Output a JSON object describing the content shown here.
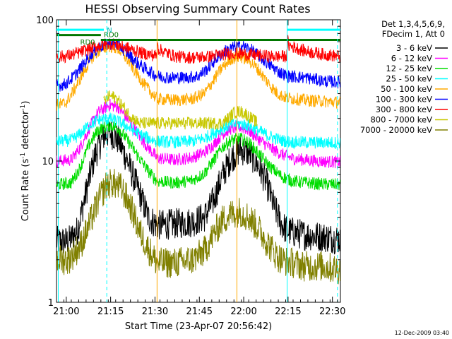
{
  "chart_data": {
    "type": "line",
    "title": "HESSI Observing Summary Count Rates",
    "xlabel": "Start Time (23-Apr-07 20:56:42)",
    "ylabel_main": "Count Rate (s",
    "ylabel_sup1": "-1",
    "ylabel_mid": " detector",
    "ylabel_sup2": "-1",
    "ylabel_end": ")",
    "yscale": "log",
    "xlim_minutes": [
      0,
      96
    ],
    "ylim": [
      1,
      100
    ],
    "x_ticks": [
      {
        "label": "21:00",
        "minute": 3.3
      },
      {
        "label": "21:15",
        "minute": 18.3
      },
      {
        "label": "21:30",
        "minute": 33.3
      },
      {
        "label": "21:45",
        "minute": 48.3
      },
      {
        "label": "22:00",
        "minute": 63.3
      },
      {
        "label": "22:15",
        "minute": 78.3
      },
      {
        "label": "22:30",
        "minute": 93.3
      }
    ],
    "y_ticks": [
      {
        "label": "1",
        "value": 1
      },
      {
        "label": "10",
        "value": 10
      },
      {
        "label": "100",
        "value": 100
      }
    ],
    "legend_header": [
      "Det 1,3,4,5,6,9,",
      "FDecim 1, Att 0"
    ],
    "legend_position": "right",
    "series": [
      {
        "name": "3 - 6 keV",
        "color": "#000000",
        "points": [
          [
            0,
            2.7
          ],
          [
            4,
            2.7
          ],
          [
            7,
            3.2
          ],
          [
            10,
            6
          ],
          [
            13,
            11
          ],
          [
            16,
            15
          ],
          [
            18,
            16
          ],
          [
            21,
            14
          ],
          [
            24,
            10
          ],
          [
            28,
            6
          ],
          [
            31,
            4
          ],
          [
            34,
            3.5
          ],
          [
            40,
            3.6
          ],
          [
            46,
            3.7
          ],
          [
            50,
            4
          ],
          [
            53,
            5.2
          ],
          [
            56,
            7.8
          ],
          [
            59,
            10.5
          ],
          [
            62,
            12
          ],
          [
            65,
            11.5
          ],
          [
            68,
            9.5
          ],
          [
            71,
            7
          ],
          [
            74,
            4.5
          ],
          [
            76,
            3.6
          ],
          [
            78,
            3.2
          ],
          [
            84,
            3.0
          ],
          [
            90,
            2.9
          ],
          [
            96,
            2.8
          ]
        ]
      },
      {
        "name": "6 - 12 keV",
        "color": "#ff00ff",
        "points": [
          [
            0,
            10
          ],
          [
            5,
            10.2
          ],
          [
            8,
            12.5
          ],
          [
            11,
            17
          ],
          [
            14,
            22
          ],
          [
            18,
            25
          ],
          [
            21,
            24
          ],
          [
            24,
            20
          ],
          [
            28,
            15
          ],
          [
            31,
            12.5
          ],
          [
            34,
            10.5
          ],
          [
            40,
            10.2
          ],
          [
            46,
            10.6
          ],
          [
            50,
            11.5
          ],
          [
            53,
            13
          ],
          [
            56,
            15.5
          ],
          [
            59,
            17
          ],
          [
            62,
            17.5
          ],
          [
            65,
            16.5
          ],
          [
            68,
            14.5
          ],
          [
            72,
            12.5
          ],
          [
            76,
            11.2
          ],
          [
            80,
            10.4
          ],
          [
            88,
            10
          ],
          [
            96,
            9.8
          ]
        ]
      },
      {
        "name": "12 - 25 keV",
        "color": "#00dd00",
        "points": [
          [
            0,
            6.8
          ],
          [
            5,
            7
          ],
          [
            8,
            9
          ],
          [
            11,
            13
          ],
          [
            14,
            16.5
          ],
          [
            18,
            18
          ],
          [
            21,
            17
          ],
          [
            24,
            14
          ],
          [
            28,
            10.5
          ],
          [
            31,
            8.5
          ],
          [
            34,
            7.2
          ],
          [
            40,
            7
          ],
          [
            46,
            7.3
          ],
          [
            50,
            8.2
          ],
          [
            53,
            10
          ],
          [
            56,
            12.5
          ],
          [
            59,
            14
          ],
          [
            62,
            14.5
          ],
          [
            65,
            13.5
          ],
          [
            68,
            11.5
          ],
          [
            72,
            9.2
          ],
          [
            76,
            7.8
          ],
          [
            80,
            7.2
          ],
          [
            88,
            6.9
          ],
          [
            96,
            6.8
          ]
        ]
      },
      {
        "name": "25 - 50 keV",
        "color": "#00ffff",
        "points": [
          [
            0,
            13.8
          ],
          [
            5,
            14
          ],
          [
            8,
            15.5
          ],
          [
            11,
            18
          ],
          [
            14,
            19.5
          ],
          [
            18,
            20
          ],
          [
            21,
            19
          ],
          [
            24,
            17.5
          ],
          [
            28,
            15.5
          ],
          [
            31,
            14.5
          ],
          [
            34,
            13.8
          ],
          [
            40,
            13.6
          ],
          [
            46,
            13.8
          ],
          [
            50,
            14.5
          ],
          [
            53,
            15.8
          ],
          [
            56,
            17
          ],
          [
            59,
            18
          ],
          [
            62,
            18.3
          ],
          [
            65,
            17.8
          ],
          [
            68,
            16.5
          ],
          [
            72,
            15
          ],
          [
            76,
            14
          ],
          [
            80,
            13.6
          ],
          [
            88,
            13.5
          ],
          [
            96,
            13.5
          ]
        ]
      },
      {
        "name": "50 - 100 keV",
        "color": "#ffaa00",
        "points": [
          [
            0,
            25
          ],
          [
            3,
            25.5
          ],
          [
            6,
            32
          ],
          [
            9,
            42
          ],
          [
            12,
            54
          ],
          [
            15,
            62
          ],
          [
            18,
            65
          ],
          [
            21,
            62
          ],
          [
            24,
            52
          ],
          [
            27,
            42
          ],
          [
            30,
            34
          ],
          [
            33,
            29
          ],
          [
            34,
            27.5
          ],
          [
            40,
            27
          ],
          [
            46,
            27.5
          ],
          [
            50,
            30
          ],
          [
            53,
            37
          ],
          [
            56,
            46
          ],
          [
            59,
            53
          ],
          [
            62,
            55
          ],
          [
            65,
            52
          ],
          [
            68,
            45
          ],
          [
            71,
            37
          ],
          [
            74,
            31
          ],
          [
            76,
            29
          ],
          [
            78,
            28
          ],
          [
            84,
            27
          ],
          [
            90,
            26.5
          ],
          [
            96,
            26
          ]
        ]
      },
      {
        "name": "100 - 300 keV",
        "color": "#0000ff",
        "points": [
          [
            0,
            34
          ],
          [
            3,
            35
          ],
          [
            6,
            40
          ],
          [
            9,
            48
          ],
          [
            12,
            58
          ],
          [
            15,
            65
          ],
          [
            18,
            68
          ],
          [
            21,
            66
          ],
          [
            24,
            58
          ],
          [
            27,
            50
          ],
          [
            30,
            45
          ],
          [
            33,
            41
          ],
          [
            34,
            40
          ],
          [
            38,
            39
          ],
          [
            44,
            39
          ],
          [
            48,
            40
          ],
          [
            51,
            45
          ],
          [
            54,
            53
          ],
          [
            57,
            60
          ],
          [
            60,
            64
          ],
          [
            63,
            65
          ],
          [
            66,
            61
          ],
          [
            69,
            54
          ],
          [
            72,
            48
          ],
          [
            75,
            43
          ],
          [
            77,
            41
          ],
          [
            78,
            40
          ],
          [
            84,
            39
          ],
          [
            90,
            37
          ],
          [
            96,
            36
          ]
        ]
      },
      {
        "name": "300 - 800 keV",
        "color": "#ff0000",
        "points": [
          [
            0,
            55
          ],
          [
            3,
            55
          ],
          [
            7,
            58
          ],
          [
            11,
            62
          ],
          [
            15,
            66
          ],
          [
            18,
            68
          ],
          [
            21,
            66
          ],
          [
            25,
            62
          ],
          [
            29,
            58
          ],
          [
            33,
            56
          ],
          [
            34,
            56
          ],
          [
            34.2,
            75
          ],
          [
            34.4,
            62
          ],
          [
            40,
            55
          ],
          [
            46,
            54
          ],
          [
            52,
            55
          ],
          [
            56,
            57
          ],
          [
            60,
            58
          ],
          [
            64,
            57
          ],
          [
            68,
            56
          ],
          [
            72,
            55
          ],
          [
            77,
            55
          ],
          [
            78,
            56
          ],
          [
            78.2,
            75
          ],
          [
            78.4,
            66
          ],
          [
            84,
            60
          ],
          [
            90,
            57
          ],
          [
            96,
            55
          ]
        ]
      },
      {
        "name": "800 - 7000 keV",
        "color": "#c8c800",
        "points": [
          [
            16,
            26
          ],
          [
            18,
            29
          ],
          [
            20,
            28
          ],
          [
            22,
            25
          ],
          [
            24,
            22
          ],
          [
            26,
            20
          ],
          [
            28,
            18.5
          ],
          [
            56,
            18.5
          ],
          [
            58,
            20
          ],
          [
            60,
            22
          ],
          [
            62,
            22.5
          ],
          [
            64,
            21.5
          ],
          [
            66,
            20
          ],
          [
            68,
            18.5
          ]
        ]
      },
      {
        "name": "7000 - 20000 keV",
        "color": "#808000",
        "points": [
          [
            0,
            2.0
          ],
          [
            4,
            2.0
          ],
          [
            8,
            2.5
          ],
          [
            11,
            3.5
          ],
          [
            14,
            5.2
          ],
          [
            17,
            6.8
          ],
          [
            19,
            7.0
          ],
          [
            22,
            6.4
          ],
          [
            25,
            4.8
          ],
          [
            28,
            3.2
          ],
          [
            31,
            2.4
          ],
          [
            34,
            1.9
          ],
          [
            40,
            1.9
          ],
          [
            46,
            2.0
          ],
          [
            50,
            2.3
          ],
          [
            53,
            3.0
          ],
          [
            56,
            3.8
          ],
          [
            59,
            4.2
          ],
          [
            62,
            4.4
          ],
          [
            65,
            4.0
          ],
          [
            68,
            3.4
          ],
          [
            71,
            2.7
          ],
          [
            74,
            2.2
          ],
          [
            76,
            2.0
          ],
          [
            84,
            1.8
          ],
          [
            90,
            1.8
          ],
          [
            96,
            1.7
          ]
        ]
      }
    ],
    "attenuator_bars": [
      {
        "label": "N",
        "color": "#00ffff",
        "start": 0,
        "end": 16,
        "level": 85
      },
      {
        "label": "N",
        "color": "#00ffff",
        "start": 78,
        "end": 96,
        "level": 85
      },
      {
        "label": "",
        "color": "#007700",
        "start": 0,
        "end": 15,
        "level": 78
      },
      {
        "label": "RD0",
        "color": "#007700",
        "start": 15,
        "end": 96,
        "level": 72
      }
    ],
    "bar_labels": [
      {
        "text": "N",
        "color": "#00bbbb",
        "minute": 17,
        "level": 85
      },
      {
        "text": "RD0",
        "color": "#007700",
        "minute": 16,
        "level": 79
      },
      {
        "text": "RD0",
        "color": "#007700",
        "minute": 8,
        "level": 70
      }
    ],
    "vlines": [
      {
        "minute": 0.6,
        "color": "#00ffff",
        "style": "solid"
      },
      {
        "minute": 17,
        "color": "#00ffff",
        "style": "dashed"
      },
      {
        "minute": 34,
        "color": "#ffaa00",
        "style": "solid"
      },
      {
        "minute": 61,
        "color": "#ffaa00",
        "style": "solid"
      },
      {
        "minute": 78,
        "color": "#00ffff",
        "style": "solid"
      },
      {
        "minute": 95,
        "color": "#00ffff",
        "style": "dashed"
      }
    ],
    "footer_date": "12-Dec-2009 03:40"
  }
}
